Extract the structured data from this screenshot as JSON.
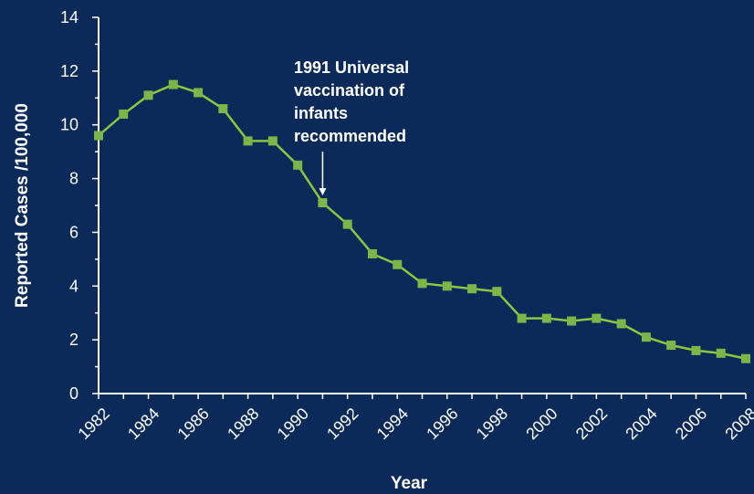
{
  "colors": {
    "background": "#0b2a59",
    "axis": "#ffffff",
    "series_line": "#8dc63f",
    "series_marker": "#7ab648",
    "text": "#ffffff"
  },
  "chart_data": {
    "type": "line",
    "title": "",
    "xlabel": "Year",
    "ylabel": "Reported Cases /100,000",
    "xlim": [
      1982,
      2008
    ],
    "ylim": [
      0,
      14
    ],
    "grid": false,
    "x_ticks": [
      "1982",
      "1984",
      "1986",
      "1988",
      "1990",
      "1992",
      "1994",
      "1996",
      "1998",
      "2000",
      "2002",
      "2004",
      "2006",
      "2008"
    ],
    "y_ticks": [
      "0",
      "2",
      "4",
      "6",
      "8",
      "10",
      "12",
      "14"
    ],
    "series": [
      {
        "x": [
          1982,
          1983,
          1984,
          1985,
          1986,
          1987,
          1988,
          1989,
          1990,
          1991,
          1992,
          1993,
          1994,
          1995,
          1996,
          1997,
          1998,
          1999,
          2000,
          2001,
          2002,
          2003,
          2004,
          2005,
          2006,
          2007,
          2008
        ],
        "y": [
          9.6,
          10.4,
          11.1,
          11.5,
          11.2,
          10.6,
          9.4,
          9.4,
          8.5,
          7.1,
          6.3,
          5.2,
          4.8,
          4.1,
          4.0,
          3.9,
          3.8,
          2.8,
          2.8,
          2.7,
          2.8,
          2.6,
          2.1,
          1.8,
          1.6,
          1.5,
          1.3
        ]
      }
    ],
    "annotations": [
      {
        "lines": [
          "1991 Universal",
          "vaccination of",
          "infants",
          "recommended"
        ],
        "x": 1991,
        "y": 7.1
      }
    ]
  }
}
